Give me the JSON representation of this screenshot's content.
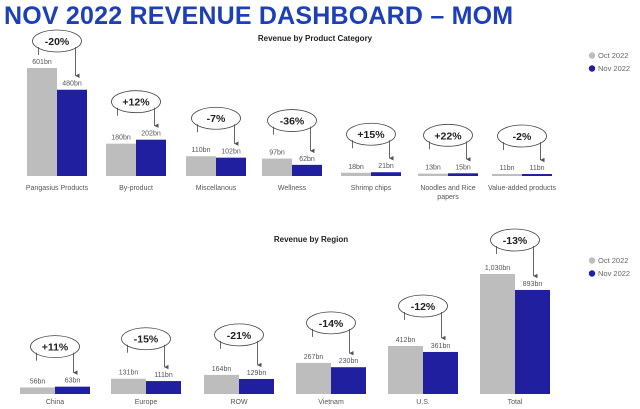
{
  "page": {
    "title": "NOV 2022 REVENUE DASHBOARD – MOM"
  },
  "colors": {
    "oct": "#bdbdbd",
    "nov": "#1f1fa0",
    "title": "#1d3fb8"
  },
  "chart_data": [
    {
      "type": "bar",
      "title": "Revenue by Product Category",
      "legend": {
        "position": "top-right"
      },
      "series": [
        {
          "name": "Oct 2022",
          "values": [
            601,
            180,
            110,
            97,
            18,
            13,
            11
          ],
          "labels": [
            "601bn",
            "180bn",
            "110bn",
            "97bn",
            "18bn",
            "13bn",
            "11bn"
          ]
        },
        {
          "name": "Nov 2022",
          "values": [
            480,
            202,
            102,
            62,
            21,
            15,
            11
          ],
          "labels": [
            "480bn",
            "202bn",
            "102bn",
            "62bn",
            "21bn",
            "15bn",
            "11bn"
          ]
        }
      ],
      "categories": [
        {
          "label": [
            "Pangasius Products"
          ],
          "change": "-20%"
        },
        {
          "label": [
            "By-product"
          ],
          "change": "+12%"
        },
        {
          "label": [
            "Miscellanous"
          ],
          "change": "-7%"
        },
        {
          "label": [
            "Wellness"
          ],
          "change": "-36%"
        },
        {
          "label": [
            "Shrimp chips"
          ],
          "change": "+15%"
        },
        {
          "label": [
            "Noodles and Rice",
            "papers"
          ],
          "change": "+22%"
        },
        {
          "label": [
            "Value-added products"
          ],
          "change": "-2%"
        }
      ],
      "ylim": [
        0,
        601
      ]
    },
    {
      "type": "bar",
      "title": "Revenue by Region",
      "legend": {
        "position": "top-right"
      },
      "series": [
        {
          "name": "Oct 2022",
          "values": [
            56,
            131,
            164,
            267,
            412,
            1030
          ],
          "labels": [
            "56bn",
            "131bn",
            "164bn",
            "267bn",
            "412bn",
            "1,030bn"
          ]
        },
        {
          "name": "Nov 2022",
          "values": [
            63,
            111,
            129,
            230,
            361,
            893
          ],
          "labels": [
            "63bn",
            "111bn",
            "129bn",
            "230bn",
            "361bn",
            "893bn"
          ]
        }
      ],
      "categories": [
        {
          "label": [
            "China"
          ],
          "change": "+11%"
        },
        {
          "label": [
            "Europe"
          ],
          "change": "-15%"
        },
        {
          "label": [
            "ROW"
          ],
          "change": "-21%"
        },
        {
          "label": [
            "Vietnam"
          ],
          "change": "-14%"
        },
        {
          "label": [
            "U.S."
          ],
          "change": "-12%"
        },
        {
          "label": [
            "Total"
          ],
          "change": "-13%"
        }
      ],
      "ylim": [
        0,
        1030
      ]
    }
  ]
}
